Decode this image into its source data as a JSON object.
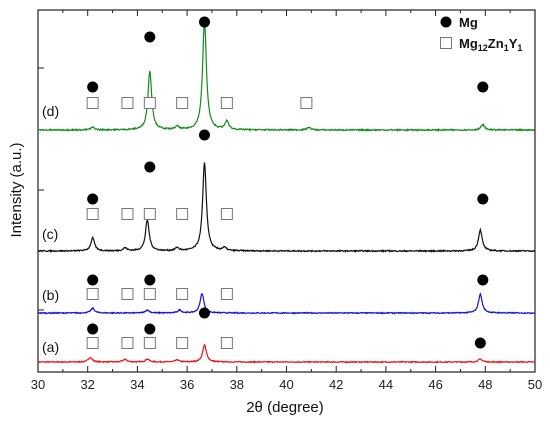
{
  "chart_data": {
    "type": "line",
    "xlabel": "2θ (degree)",
    "ylabel": "Intensity (a.u.)",
    "xlim": [
      30,
      50
    ],
    "x_ticks": [
      "30",
      "32",
      "34",
      "36",
      "38",
      "40",
      "42",
      "44",
      "46",
      "48",
      "50"
    ],
    "legend": {
      "placement": "top-right",
      "entries": [
        {
          "marker": "filled-circle",
          "label": "Mg"
        },
        {
          "marker": "open-square",
          "label_main": "Mg",
          "sub1": "12",
          "mid1": "Zn",
          "sub2": "1",
          "mid2": "Y",
          "sub3": "1"
        }
      ]
    },
    "series": [
      {
        "name": "(a)",
        "color": "#e8141b",
        "baseline": 0,
        "peaks": [
          [
            32.1,
            0.55
          ],
          [
            33.5,
            0.32
          ],
          [
            34.4,
            0.35
          ],
          [
            35.6,
            0.25
          ],
          [
            36.7,
            2.0
          ],
          [
            47.8,
            0.35
          ]
        ],
        "circles": [
          32.2,
          34.5,
          36.7,
          47.8
        ],
        "squares": [
          32.2,
          33.6,
          34.5,
          35.8,
          37.6
        ]
      },
      {
        "name": "(b)",
        "color": "#1414d2",
        "baseline": 0,
        "peaks": [
          [
            32.2,
            0.55
          ],
          [
            34.4,
            0.35
          ],
          [
            35.7,
            0.35
          ],
          [
            36.6,
            2.3
          ],
          [
            47.8,
            2.2
          ]
        ],
        "circles": [
          32.2,
          34.5,
          47.9
        ],
        "squares": [
          32.2,
          33.6,
          34.5,
          35.8,
          37.6
        ]
      },
      {
        "name": "(c)",
        "color": "#111111",
        "baseline": 0,
        "peaks": [
          [
            32.2,
            1.3
          ],
          [
            33.5,
            0.3
          ],
          [
            34.4,
            3.1
          ],
          [
            35.6,
            0.3
          ],
          [
            36.7,
            8.8
          ],
          [
            37.5,
            0.3
          ],
          [
            47.8,
            2.1
          ]
        ],
        "circles": [
          32.2,
          34.5,
          36.7,
          47.9
        ],
        "squares": [
          32.2,
          33.6,
          34.5,
          35.8,
          37.6
        ]
      },
      {
        "name": "(d)",
        "color": "#128c1e",
        "baseline": 0,
        "peaks": [
          [
            32.2,
            0.25
          ],
          [
            34.5,
            5.6
          ],
          [
            35.6,
            0.3
          ],
          [
            36.7,
            10.5
          ],
          [
            37.6,
            0.8
          ],
          [
            40.9,
            0.25
          ],
          [
            47.9,
            0.5
          ]
        ],
        "circles": [
          32.2,
          34.5,
          36.7,
          47.9
        ],
        "squares": [
          32.2,
          33.6,
          34.5,
          35.8,
          37.6,
          40.8
        ]
      }
    ],
    "grid": false
  }
}
